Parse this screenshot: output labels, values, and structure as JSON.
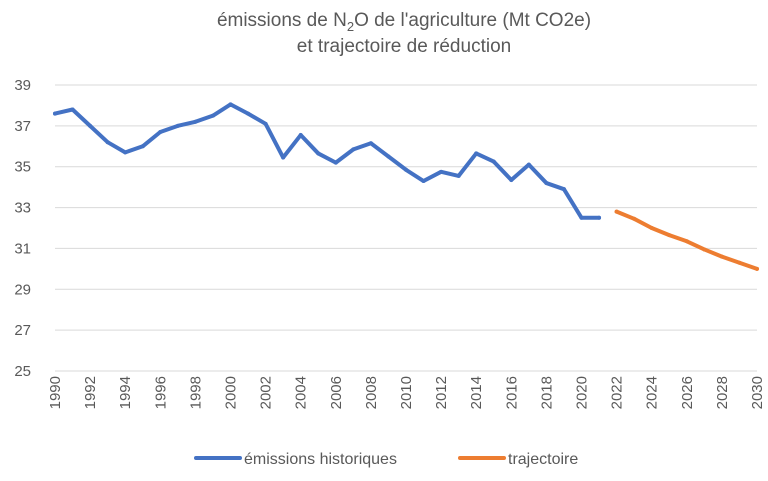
{
  "chart_data": {
    "type": "line",
    "title_parts": {
      "line1_prefix": "émissions de N",
      "line1_subscript": "2",
      "line1_suffix": "O de l'agriculture (Mt CO2e)",
      "line2": "et trajectoire de réduction"
    },
    "xlabel": "",
    "ylabel": "",
    "xlim": [
      1990,
      2030
    ],
    "ylim": [
      25,
      39
    ],
    "yticks": [
      25,
      27,
      29,
      31,
      33,
      35,
      37,
      39
    ],
    "xticks": [
      1990,
      1992,
      1994,
      1996,
      1998,
      2000,
      2002,
      2004,
      2006,
      2008,
      2010,
      2012,
      2014,
      2016,
      2018,
      2020,
      2022,
      2024,
      2026,
      2028,
      2030
    ],
    "grid": "horizontal",
    "legend_position": "bottom",
    "series": [
      {
        "name": "émissions historiques",
        "color": "#4472c4",
        "x": [
          1990,
          1991,
          1992,
          1993,
          1994,
          1995,
          1996,
          1997,
          1998,
          1999,
          2000,
          2001,
          2002,
          2003,
          2004,
          2005,
          2006,
          2007,
          2008,
          2009,
          2010,
          2011,
          2012,
          2013,
          2014,
          2015,
          2016,
          2017,
          2018,
          2019,
          2020,
          2021
        ],
        "values": [
          37.6,
          37.8,
          37.0,
          36.2,
          35.7,
          36.0,
          36.7,
          37.0,
          37.2,
          37.5,
          38.05,
          37.6,
          37.1,
          35.45,
          36.55,
          35.65,
          35.2,
          35.85,
          36.15,
          35.5,
          34.85,
          34.3,
          34.75,
          34.55,
          35.65,
          35.25,
          34.35,
          35.1,
          34.2,
          33.9,
          32.5,
          32.5
        ]
      },
      {
        "name": "trajectoire",
        "color": "#ed7d31",
        "x": [
          2022,
          2023,
          2024,
          2025,
          2026,
          2027,
          2028,
          2029,
          2030
        ],
        "values": [
          32.8,
          32.45,
          32.0,
          31.65,
          31.35,
          30.95,
          30.6,
          30.3,
          30.0
        ]
      }
    ]
  }
}
